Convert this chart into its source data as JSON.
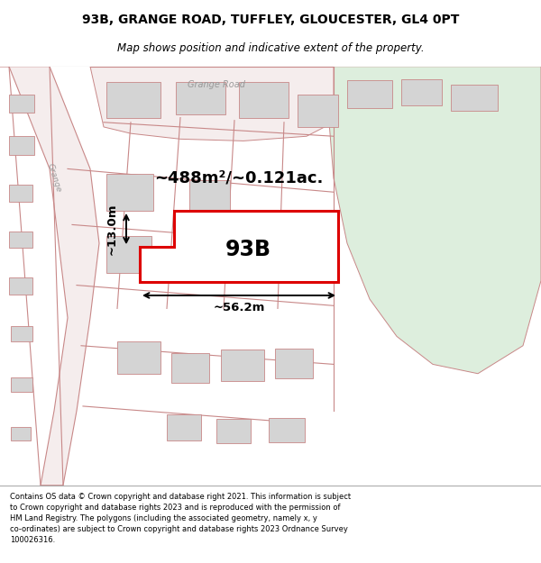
{
  "title_line1": "93B, GRANGE ROAD, TUFFLEY, GLOUCESTER, GL4 0PT",
  "title_line2": "Map shows position and indicative extent of the property.",
  "label_93B": "93B",
  "area_label": "~488m²/~0.121ac.",
  "width_label": "~56.2m",
  "height_label": "~13.0m",
  "road_label": "Grange Road",
  "road_label_vertical": "Grange",
  "footer_text": "Contains OS data © Crown copyright and database right 2021. This information is subject to Crown copyright and database rights 2023 and is reproduced with the permission of HM Land Registry. The polygons (including the associated geometry, namely x, y co-ordinates) are subject to Crown copyright and database rights 2023 Ordnance Survey 100026316.",
  "bg_color": "#ffffff",
  "map_bg": "#f0eaea",
  "green_area_color": "#ddeedd",
  "building_color": "#d4d4d4",
  "plot_outline_color": "#dd0000",
  "dim_line_color": "#000000",
  "road_line_color": "#c88888",
  "title_fontsize": 10,
  "subtitle_fontsize": 8.5,
  "footer_fontsize": 6.0
}
